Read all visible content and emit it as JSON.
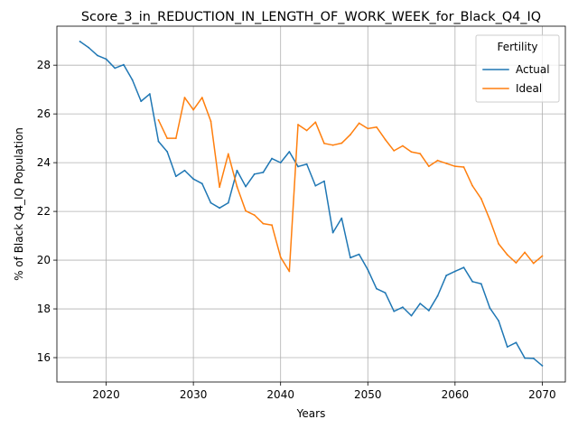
{
  "chart_data": {
    "type": "line",
    "title": "Score_3_in_REDUCTION_IN_LENGTH_OF_WORK_WEEK_for_Black_Q4_IQ",
    "xlabel": "Years",
    "ylabel": "% of Black Q4_IQ Population",
    "xlim": [
      2014.35,
      2072.65
    ],
    "ylim": [
      15.0,
      29.6
    ],
    "x_ticks": [
      2020,
      2030,
      2040,
      2050,
      2060,
      2070
    ],
    "y_ticks": [
      16,
      18,
      20,
      22,
      24,
      26,
      28
    ],
    "grid": true,
    "legend": {
      "title": "Fertility",
      "placement": "top-right"
    },
    "series": [
      {
        "name": "Actual",
        "color": "#1f77b4",
        "x": [
          2017,
          2018,
          2019,
          2020,
          2021,
          2022,
          2023,
          2024,
          2025,
          2026,
          2027,
          2028,
          2029,
          2030,
          2031,
          2032,
          2033,
          2034,
          2035,
          2036,
          2037,
          2038,
          2039,
          2040,
          2041,
          2042,
          2043,
          2044,
          2045,
          2046,
          2047,
          2048,
          2049,
          2050,
          2051,
          2052,
          2053,
          2054,
          2055,
          2056,
          2057,
          2058,
          2059,
          2060,
          2061,
          2062,
          2063,
          2064,
          2065,
          2066,
          2067,
          2068,
          2069,
          2070
        ],
        "values": [
          28.97,
          28.72,
          28.4,
          28.25,
          27.88,
          28.02,
          27.4,
          26.52,
          26.82,
          24.87,
          24.45,
          23.44,
          23.68,
          23.33,
          23.14,
          22.35,
          22.14,
          22.35,
          23.68,
          23.02,
          23.53,
          23.6,
          24.17,
          24.0,
          24.45,
          23.84,
          23.94,
          23.05,
          23.24,
          21.13,
          21.72,
          20.1,
          20.24,
          19.61,
          18.83,
          18.66,
          17.9,
          18.07,
          17.72,
          18.22,
          17.93,
          18.53,
          19.37,
          19.54,
          19.7,
          19.12,
          19.03,
          18.03,
          17.51,
          16.44,
          16.62,
          15.98,
          15.97,
          15.67
        ]
      },
      {
        "name": "Ideal",
        "color": "#ff7f0e",
        "x": [
          2026,
          2027,
          2028,
          2029,
          2030,
          2031,
          2032,
          2033,
          2034,
          2035,
          2036,
          2037,
          2038,
          2039,
          2040,
          2041,
          2042,
          2043,
          2044,
          2045,
          2046,
          2047,
          2048,
          2049,
          2050,
          2051,
          2052,
          2053,
          2054,
          2055,
          2056,
          2057,
          2058,
          2059,
          2060,
          2061,
          2062,
          2063,
          2064,
          2065,
          2066,
          2067,
          2068,
          2069,
          2070
        ],
        "values": [
          25.75,
          25.0,
          25.0,
          26.67,
          26.17,
          26.67,
          25.7,
          23.0,
          24.36,
          23.02,
          22.02,
          21.85,
          21.5,
          21.44,
          20.12,
          19.54,
          25.56,
          25.32,
          25.66,
          24.79,
          24.72,
          24.8,
          25.15,
          25.62,
          25.4,
          25.46,
          24.95,
          24.49,
          24.69,
          24.44,
          24.37,
          23.85,
          24.09,
          23.97,
          23.85,
          23.82,
          23.05,
          22.52,
          21.65,
          20.67,
          20.22,
          19.89,
          20.32,
          19.87,
          20.17
        ]
      }
    ]
  }
}
